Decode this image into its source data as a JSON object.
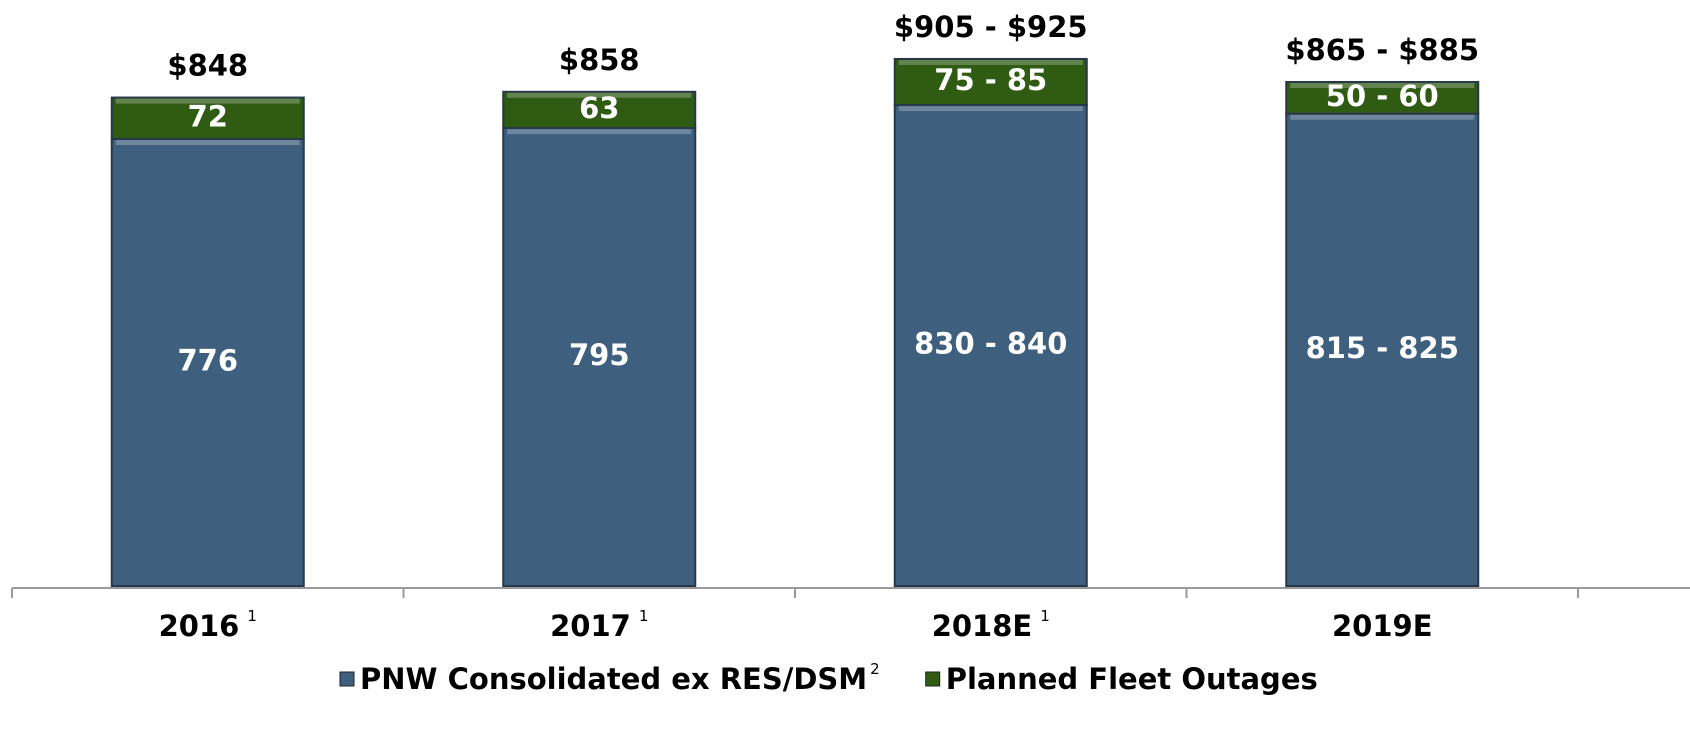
{
  "chart_data": {
    "type": "stacked_bar",
    "categories": [
      "2016",
      "2017",
      "2018E",
      "2019E"
    ],
    "category_notes": [
      "1",
      "1",
      "1",
      null
    ],
    "series": [
      {
        "name": "PNW Consolidated ex RES/DSM",
        "note": "2",
        "color": "#3f5f7e",
        "values": [
          776,
          795,
          835,
          820
        ],
        "value_labels": [
          "776",
          "795",
          "830 - 840",
          "815 - 825"
        ]
      },
      {
        "name": "Planned Fleet Outages",
        "color": "#2f5b13",
        "values": [
          72,
          63,
          80,
          55
        ],
        "value_labels": [
          "72",
          "63",
          "75 - 85",
          "50 - 60"
        ]
      }
    ],
    "total_labels": [
      "$848",
      "$858",
      "$905 - $925",
      "$865 - $885"
    ],
    "ylim": [
      0,
      1000
    ]
  }
}
